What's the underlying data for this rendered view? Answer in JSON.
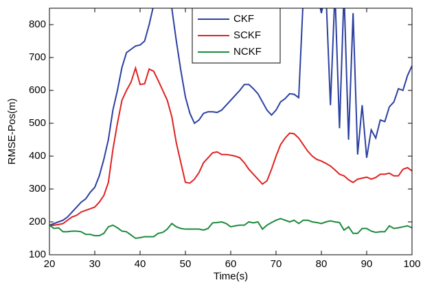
{
  "chart_data": {
    "type": "line",
    "xlabel": "Time(s)",
    "ylabel": "RMSE-Pos(m)",
    "x": [
      20,
      21,
      22,
      23,
      24,
      25,
      26,
      27,
      28,
      29,
      30,
      31,
      32,
      33,
      34,
      35,
      36,
      37,
      38,
      39,
      40,
      41,
      42,
      43,
      44,
      45,
      46,
      47,
      48,
      49,
      50,
      51,
      52,
      53,
      54,
      55,
      56,
      57,
      58,
      59,
      60,
      61,
      62,
      63,
      64,
      65,
      66,
      67,
      68,
      69,
      70,
      71,
      72,
      73,
      74,
      75,
      76,
      77,
      78,
      79,
      80,
      81,
      82,
      83,
      84,
      85,
      86,
      87,
      88,
      89,
      90,
      91,
      92,
      93,
      94,
      95,
      96,
      97,
      98,
      99,
      100
    ],
    "series": [
      {
        "name": "CKF",
        "color": "#2b3fa0",
        "values": [
          190,
          195,
          200,
          205,
          215,
          230,
          245,
          260,
          270,
          290,
          305,
          340,
          390,
          450,
          540,
          600,
          670,
          715,
          725,
          735,
          738,
          750,
          800,
          860,
          900,
          900,
          900,
          850,
          750,
          660,
          580,
          530,
          500,
          510,
          530,
          535,
          535,
          533,
          540,
          555,
          570,
          585,
          600,
          618,
          618,
          605,
          590,
          565,
          540,
          525,
          540,
          565,
          575,
          590,
          588,
          578,
          880,
          900,
          900,
          900,
          835,
          900,
          555,
          900,
          485,
          900,
          450,
          835,
          405,
          555,
          395,
          480,
          455,
          510,
          505,
          550,
          565,
          605,
          600,
          645,
          675
        ]
      },
      {
        "name": "SCKF",
        "color": "#e02020",
        "values": [
          188,
          190,
          192,
          195,
          205,
          215,
          220,
          230,
          235,
          240,
          245,
          260,
          280,
          320,
          420,
          500,
          570,
          600,
          625,
          668,
          618,
          620,
          665,
          658,
          630,
          600,
          570,
          520,
          440,
          380,
          320,
          318,
          330,
          350,
          380,
          395,
          410,
          413,
          405,
          405,
          403,
          400,
          395,
          380,
          360,
          345,
          330,
          315,
          325,
          360,
          400,
          435,
          455,
          470,
          468,
          455,
          435,
          415,
          400,
          390,
          385,
          378,
          370,
          358,
          345,
          340,
          328,
          320,
          330,
          333,
          336,
          330,
          335,
          345,
          345,
          348,
          340,
          340,
          360,
          365,
          355
        ]
      },
      {
        "name": "NCKF",
        "color": "#1a8a3a",
        "values": [
          190,
          180,
          182,
          170,
          170,
          172,
          172,
          170,
          162,
          162,
          158,
          158,
          165,
          185,
          190,
          182,
          172,
          170,
          160,
          150,
          152,
          155,
          155,
          155,
          165,
          168,
          178,
          195,
          185,
          180,
          178,
          178,
          178,
          178,
          175,
          180,
          197,
          198,
          200,
          195,
          185,
          188,
          190,
          190,
          200,
          197,
          200,
          178,
          190,
          198,
          205,
          210,
          205,
          200,
          205,
          195,
          205,
          205,
          200,
          198,
          195,
          200,
          203,
          200,
          198,
          175,
          185,
          165,
          165,
          180,
          180,
          172,
          168,
          170,
          170,
          188,
          180,
          182,
          185,
          188,
          182
        ]
      }
    ],
    "xlim": [
      20,
      100
    ],
    "xticks": [
      20,
      30,
      40,
      50,
      60,
      70,
      80,
      90,
      100
    ],
    "ylim": [
      100,
      850
    ],
    "yticks": [
      100,
      200,
      300,
      400,
      500,
      600,
      700,
      800
    ],
    "legend": "upper center"
  }
}
